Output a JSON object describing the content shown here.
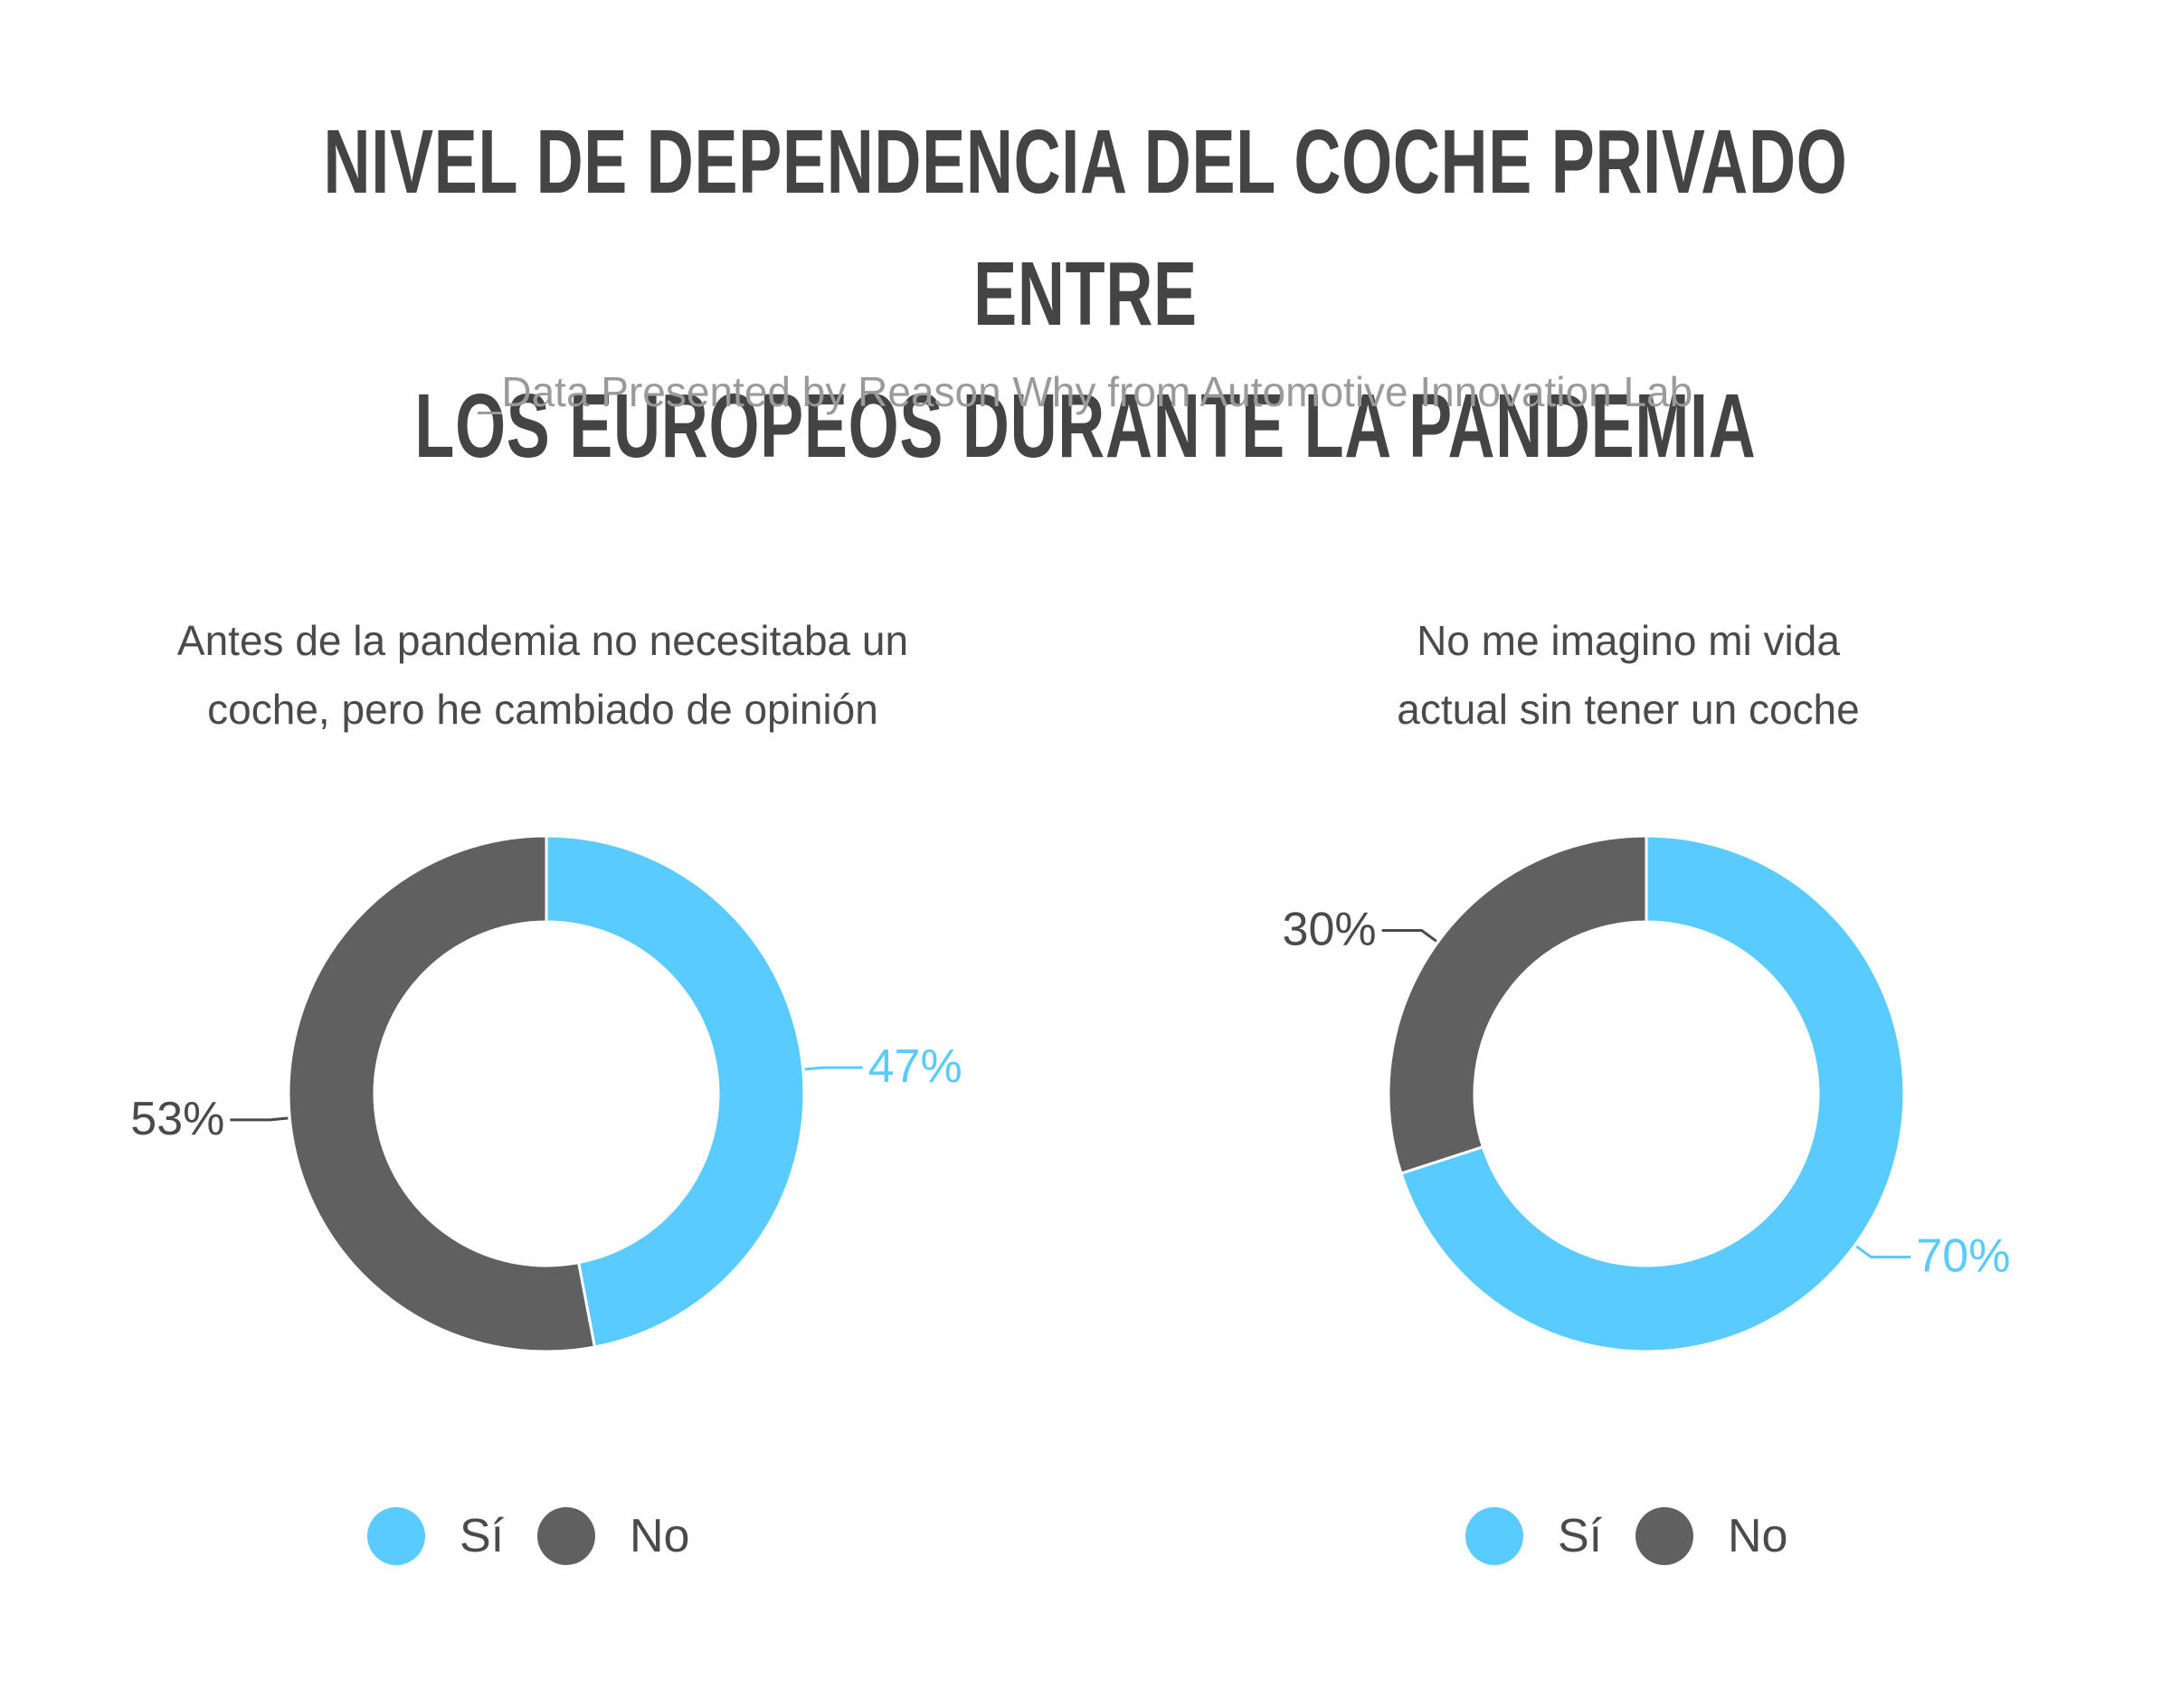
{
  "title_lines": [
    "NIVEL DE DEPENDENCIA DEL COCHE PRIVADO ENTRE",
    "LOS EUROPEOS DURANTE LA PANDEMIA"
  ],
  "subtitle": "_Data Presented by Reason Why from Automotive Innovation Lab",
  "colors": {
    "si": "#5acbff",
    "no": "#606060",
    "label_dark": "#4a4a4a"
  },
  "chart_data": [
    {
      "type": "pie",
      "title_lines": [
        "Antes de la pandemia no necesitaba un",
        "coche, pero he cambiado de opinión"
      ],
      "categories": [
        "Sí",
        "No"
      ],
      "values": [
        47,
        53
      ],
      "data_labels": [
        "47%",
        "53%"
      ],
      "legend": {
        "items": [
          "Sí",
          "No"
        ],
        "position": "bottom"
      }
    },
    {
      "type": "pie",
      "title_lines": [
        "No me imagino mi vida",
        "actual sin tener un coche"
      ],
      "categories": [
        "Sí",
        "No"
      ],
      "values": [
        70,
        30
      ],
      "data_labels": [
        "70%",
        "30%"
      ],
      "legend": {
        "items": [
          "Sí",
          "No"
        ],
        "position": "bottom"
      }
    }
  ]
}
